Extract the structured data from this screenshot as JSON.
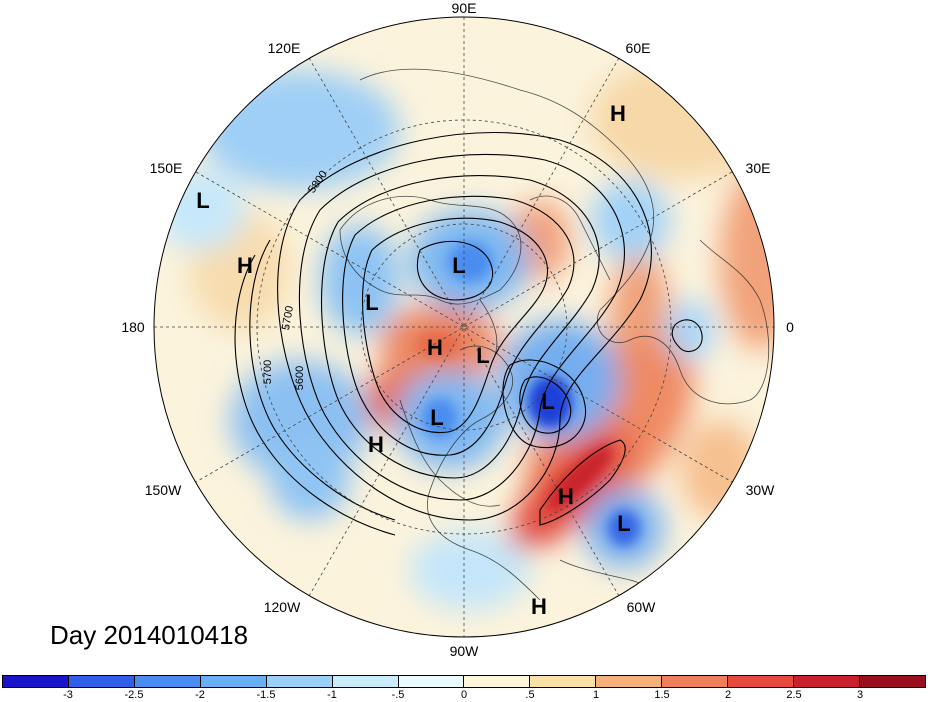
{
  "title": "Day 2014010418",
  "longitude_labels": [
    {
      "id": "90e",
      "text": "90E"
    },
    {
      "id": "60e",
      "text": "60E"
    },
    {
      "id": "120e",
      "text": "120E"
    },
    {
      "id": "30e",
      "text": "30E"
    },
    {
      "id": "150e",
      "text": "150E"
    },
    {
      "id": "0",
      "text": "0"
    },
    {
      "id": "180",
      "text": "180"
    },
    {
      "id": "30w",
      "text": "30W"
    },
    {
      "id": "150w",
      "text": "150W"
    },
    {
      "id": "60w",
      "text": "60W"
    },
    {
      "id": "120w",
      "text": "120W"
    },
    {
      "id": "90w",
      "text": "90W"
    }
  ],
  "pressure_centers": [
    {
      "id": "h-60e",
      "text": "H"
    },
    {
      "id": "l-150e",
      "text": "L"
    },
    {
      "id": "h-170e",
      "text": "H"
    },
    {
      "id": "l-siberia",
      "text": "L"
    },
    {
      "id": "l-pacific",
      "text": "L"
    },
    {
      "id": "h-arctic",
      "text": "H"
    },
    {
      "id": "l-canada",
      "text": "L"
    },
    {
      "id": "l-hudson",
      "text": "L"
    },
    {
      "id": "l-atlantic",
      "text": "L"
    },
    {
      "id": "h-westcoast",
      "text": "H"
    },
    {
      "id": "h-midatlantic",
      "text": "H"
    },
    {
      "id": "l-subtropical",
      "text": "L"
    },
    {
      "id": "h-caribbean",
      "text": "H"
    }
  ],
  "contour_labels": [
    {
      "id": "c5800",
      "text": "5800"
    },
    {
      "id": "c5700a",
      "text": "5700"
    },
    {
      "id": "c5700b",
      "text": "5700"
    },
    {
      "id": "c5600",
      "text": "5600"
    }
  ],
  "colorbar": {
    "colors": [
      "#1a14c8",
      "#2f5fe6",
      "#4a8cf0",
      "#6aaef5",
      "#9ad0f8",
      "#c8ecfb",
      "#eafbfd",
      "#fdf6d8",
      "#f9e0a6",
      "#f6b07a",
      "#ef7f5a",
      "#e64a3e",
      "#c8202c",
      "#98101e"
    ],
    "ticks": [
      "-3",
      "-2.5",
      "-2",
      "-1.5",
      "-1",
      "-.5",
      "0",
      ".5",
      "1",
      "1.5",
      "2",
      "2.5",
      "3"
    ]
  }
}
